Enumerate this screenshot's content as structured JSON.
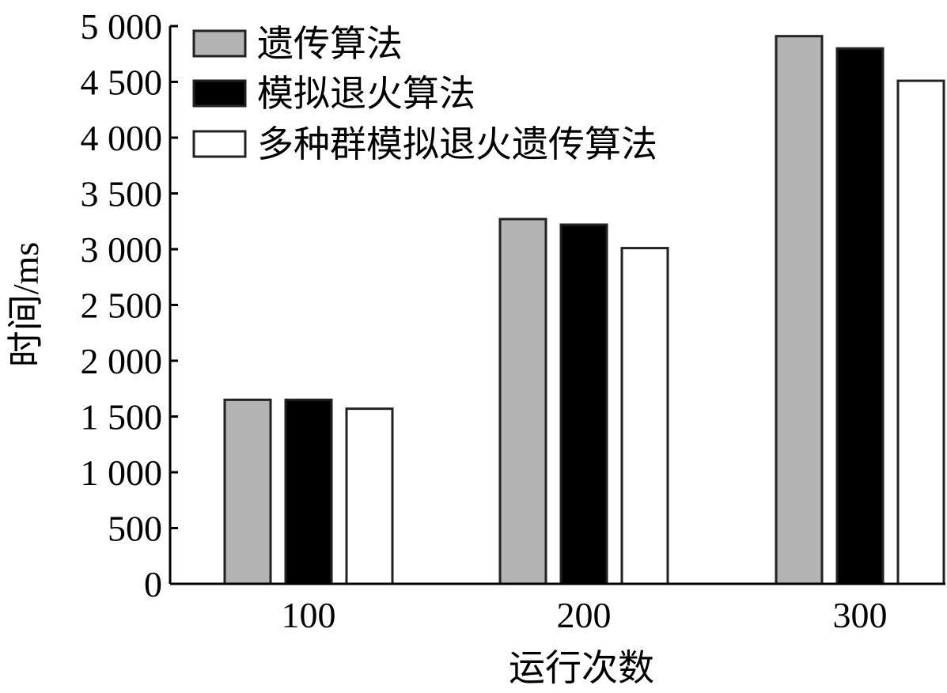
{
  "chart_data": {
    "type": "bar",
    "xlabel": "运行次数",
    "ylabel": "时间/ms",
    "categories": [
      "100",
      "200",
      "300"
    ],
    "ylim": [
      0,
      5000
    ],
    "yticks": [
      0,
      500,
      1000,
      1500,
      2000,
      2500,
      3000,
      3500,
      4000,
      4500,
      5000
    ],
    "ytick_labels": [
      "0",
      "500",
      "1 000",
      "1 500",
      "2 000",
      "2 500",
      "3 000",
      "3 500",
      "4 000",
      "4 500",
      "5 000"
    ],
    "grid": false,
    "legend_position": "top-left",
    "series": [
      {
        "name": "遗传算法",
        "color": "#b3b3b3",
        "values": [
          1650,
          3270,
          4910
        ]
      },
      {
        "name": "模拟退火算法",
        "color": "#000000",
        "values": [
          1650,
          3220,
          4800
        ]
      },
      {
        "name": "多种群模拟退火遗传算法",
        "color": "#ffffff",
        "values": [
          1570,
          3010,
          4510
        ]
      }
    ]
  }
}
